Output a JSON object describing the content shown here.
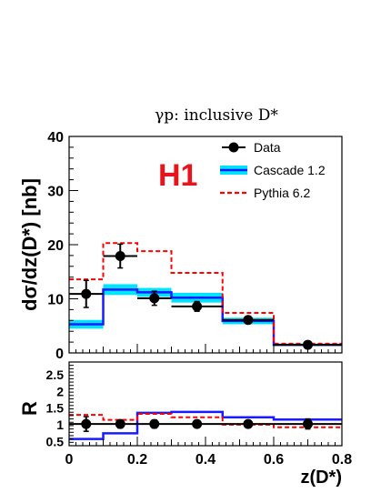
{
  "figure": {
    "title": "γp:  inclusive D*",
    "experiment_logo": "H1",
    "xlabel": "z(D*)",
    "colors": {
      "data": "#000000",
      "cascade_line": "#1a1aff",
      "cascade_band": "#00e5ff",
      "pythia": "#ff0000"
    }
  },
  "chart_data": [
    {
      "type": "line",
      "panel": "main",
      "ylabel": "dσ/dz(D*) [nb]",
      "xlim": [
        0,
        0.8
      ],
      "ylim": [
        0,
        40
      ],
      "xticks": [
        "0",
        "0.2",
        "0.4",
        "0.6",
        "0.8"
      ],
      "yticks": [
        "0",
        "10",
        "20",
        "30",
        "40"
      ],
      "legend_position": "top-right",
      "bin_edges": [
        0,
        0.1,
        0.2,
        0.3,
        0.45,
        0.6,
        0.8
      ],
      "series": [
        {
          "name": "Data",
          "kind": "points",
          "x": [
            0.05,
            0.15,
            0.25,
            0.375,
            0.525,
            0.7
          ],
          "y": [
            10.9,
            17.9,
            10.1,
            8.6,
            6.1,
            1.5
          ],
          "err_low": [
            2.5,
            2.2,
            1.3,
            0.9,
            0.5,
            0.25
          ],
          "err_high": [
            2.5,
            2.2,
            1.3,
            0.9,
            0.5,
            0.25
          ]
        },
        {
          "name": "Cascade 1.2",
          "kind": "histogram_band",
          "values": [
            5.3,
            11.7,
            11.2,
            10.2,
            5.9,
            1.5
          ],
          "band_low": [
            4.5,
            10.7,
            10.4,
            9.3,
            5.3,
            1.3
          ],
          "band_high": [
            6.1,
            12.7,
            12.0,
            11.1,
            6.5,
            1.7
          ]
        },
        {
          "name": "Pythia 6.2",
          "kind": "histogram_dashed",
          "values": [
            13.6,
            20.3,
            18.8,
            14.8,
            7.4,
            1.7
          ]
        }
      ]
    },
    {
      "type": "line",
      "panel": "ratio",
      "ylabel": "R",
      "xlim": [
        0,
        0.8
      ],
      "ylim": [
        0.35,
        2.85
      ],
      "xticks": [
        "0",
        "0.2",
        "0.4",
        "0.6",
        "0.8"
      ],
      "yticks": [
        "0.5",
        "1",
        "1.5",
        "2",
        "2.5"
      ],
      "bin_edges": [
        0,
        0.1,
        0.2,
        0.3,
        0.45,
        0.6,
        0.8
      ],
      "series": [
        {
          "name": "Data",
          "kind": "points",
          "x": [
            0.05,
            0.15,
            0.25,
            0.375,
            0.525,
            0.7
          ],
          "y": [
            1,
            1,
            1,
            1,
            1,
            1
          ],
          "err": [
            0.22,
            0.12,
            0.12,
            0.1,
            0.08,
            0.15
          ]
        },
        {
          "name": "Cascade 1.2",
          "kind": "histogram",
          "values": [
            0.55,
            0.72,
            1.33,
            1.36,
            1.2,
            1.13
          ]
        },
        {
          "name": "Pythia 6.2",
          "kind": "histogram_dashed",
          "values": [
            1.27,
            1.12,
            1.3,
            1.2,
            0.98,
            0.9
          ]
        }
      ]
    }
  ]
}
